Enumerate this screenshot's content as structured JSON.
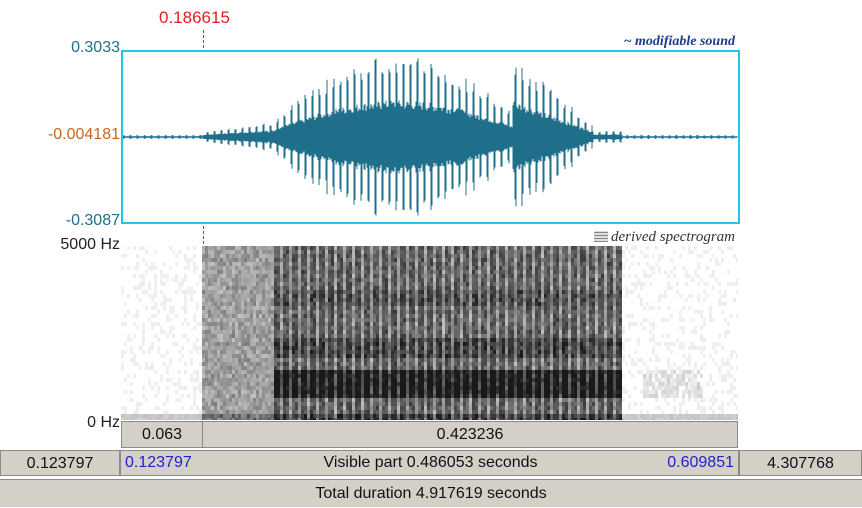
{
  "cursor": {
    "time_label": "0.186615"
  },
  "waveform": {
    "title": "~ modifiable sound",
    "max_label": "0.3033",
    "mid_label": "-0.004181",
    "min_label": "-0.3087",
    "colors": {
      "wave": "#1f6f8b",
      "frame": "#22c5e6"
    }
  },
  "spectrogram": {
    "title": "derived spectrogram",
    "top_label": "5000 Hz",
    "bottom_label": "0 Hz"
  },
  "selection_bar": {
    "left_segment": "0.063",
    "right_segment": "0.423236"
  },
  "visible_bar": {
    "outer_left": "0.123797",
    "inner_left": "0.123797",
    "center": "Visible part 0.486053 seconds",
    "inner_right": "0.609851",
    "outer_right": "4.307768"
  },
  "total_bar": {
    "label": "Total duration 4.917619 seconds"
  },
  "icons": {
    "spectrogram_mini": "spectrogram-icon"
  }
}
